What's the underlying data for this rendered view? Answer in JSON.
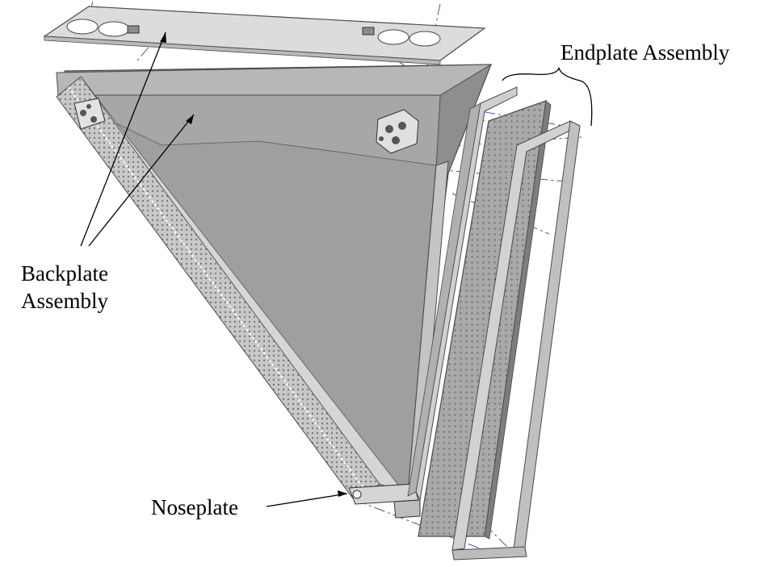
{
  "labels": {
    "endplate": "Endplate Assembly",
    "backplate_line1": "Backplate",
    "backplate_line2": "Assembly",
    "noseplate": "Noseplate"
  },
  "colors": {
    "panel_fill": "#9e9e9e",
    "panel_dark": "#8a8a8a",
    "panel_light": "#d8d8d8",
    "outline": "#4a4a4a",
    "perforated": "#b5b5b5",
    "centerline": "#3b5d9a",
    "annotation": "#000000"
  }
}
